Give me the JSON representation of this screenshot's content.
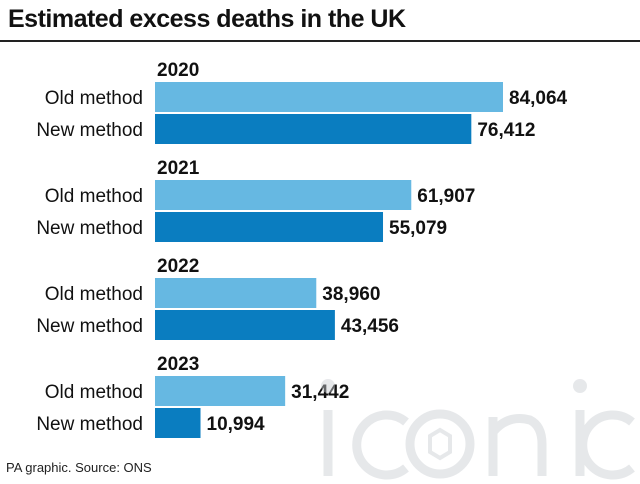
{
  "title": "Estimated excess deaths in the UK",
  "source": "PA graphic. Source: ONS",
  "watermark": "iconic",
  "colors": {
    "old": "#66b8e2",
    "new": "#0a7dc0",
    "text": "#111111",
    "rule": "#222222"
  },
  "chart_data": {
    "type": "bar",
    "orientation": "horizontal",
    "title": "Estimated excess deaths in the UK",
    "grid": false,
    "groups": [
      {
        "year": "2020",
        "bars": [
          {
            "label": "Old method",
            "value": 84064,
            "value_label": "84,064"
          },
          {
            "label": "New method",
            "value": 76412,
            "value_label": "76,412"
          }
        ]
      },
      {
        "year": "2021",
        "bars": [
          {
            "label": "Old method",
            "value": 61907,
            "value_label": "61,907"
          },
          {
            "label": "New method",
            "value": 55079,
            "value_label": "55,079"
          }
        ]
      },
      {
        "year": "2022",
        "bars": [
          {
            "label": "Old method",
            "value": 38960,
            "value_label": "38,960"
          },
          {
            "label": "New method",
            "value": 43456,
            "value_label": "43,456"
          }
        ]
      },
      {
        "year": "2023",
        "bars": [
          {
            "label": "Old method",
            "value": 31442,
            "value_label": "31,442"
          },
          {
            "label": "New method",
            "value": 10994,
            "value_label": "10,994"
          }
        ]
      }
    ]
  }
}
